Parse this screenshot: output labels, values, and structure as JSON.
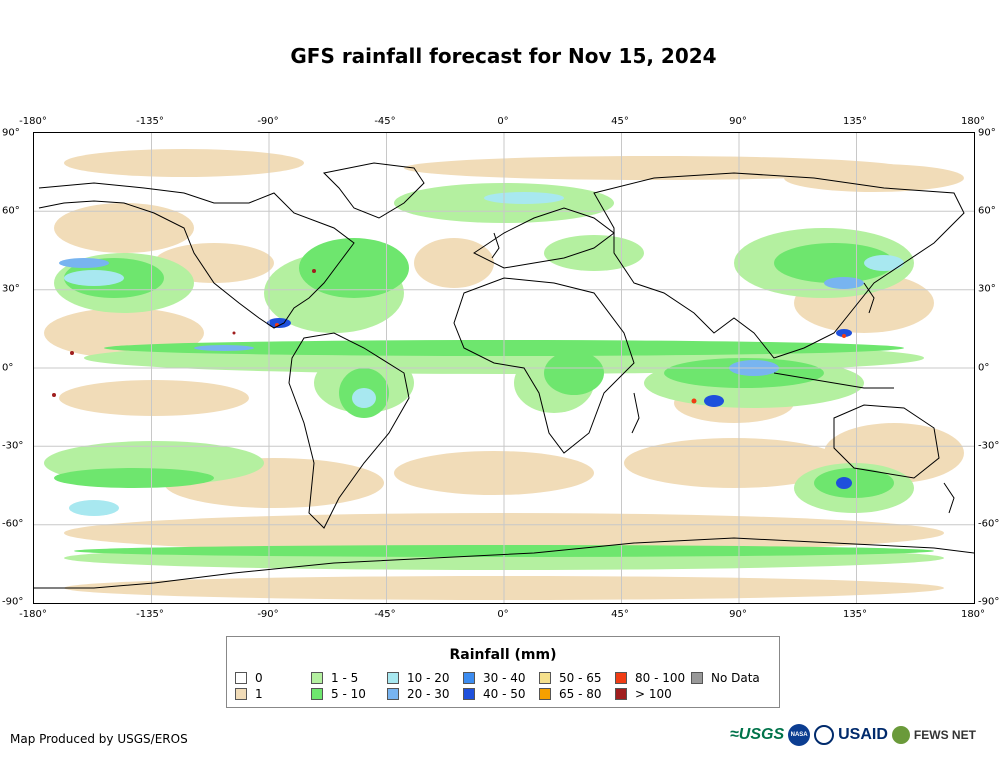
{
  "title": "GFS rainfall forecast for Nov 15, 2024",
  "axes": {
    "lon_ticks": [
      "-180°",
      "-135°",
      "-90°",
      "-45°",
      "0°",
      "45°",
      "90°",
      "135°",
      "180°"
    ],
    "lat_ticks": [
      "90°",
      "60°",
      "30°",
      "0°",
      "-30°",
      "-60°",
      "-90°"
    ]
  },
  "legend": {
    "title": "Rainfall (mm)",
    "items": [
      {
        "label": "0",
        "color": "#ffffff"
      },
      {
        "label": "1",
        "color": "#f1dcb8"
      },
      {
        "label": "1 - 5",
        "color": "#b4f0a0"
      },
      {
        "label": "5 - 10",
        "color": "#6ee66e"
      },
      {
        "label": "10 - 20",
        "color": "#a8e8f0"
      },
      {
        "label": "20 - 30",
        "color": "#78b4f0"
      },
      {
        "label": "30 - 40",
        "color": "#3c8cf0"
      },
      {
        "label": "40 - 50",
        "color": "#1e50dc"
      },
      {
        "label": "50 - 65",
        "color": "#f5e08c"
      },
      {
        "label": "65 - 80",
        "color": "#f5a000"
      },
      {
        "label": "80 - 100",
        "color": "#f03c14"
      },
      {
        "label": "> 100",
        "color": "#a01e1e"
      },
      {
        "label": "No Data",
        "color": "#999999"
      }
    ]
  },
  "credit": "Map Produced by USGS/EROS",
  "logos": {
    "usgs": "≈USGS",
    "nasa": "NASA",
    "usaid": "USAID",
    "fews": "FEWS NET"
  }
}
